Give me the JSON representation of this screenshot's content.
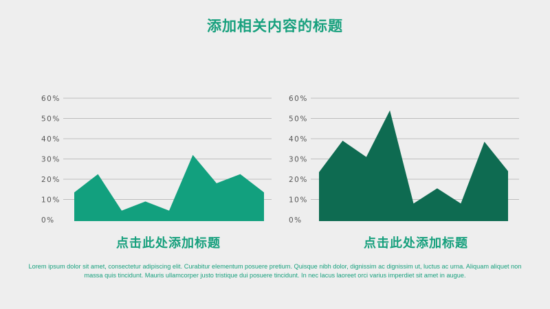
{
  "title": "添加相关内容的标题",
  "colors": {
    "title": "#17a07d",
    "left_area": "#12a07e",
    "right_area": "#0e6b51",
    "caption": "#17a07d",
    "body_text": "#17a07d"
  },
  "chart_data": [
    {
      "type": "area",
      "caption": "点击此处添加标题",
      "y_ticks": [
        "0%",
        "10%",
        "20%",
        "30%",
        "40%",
        "50%",
        "60%"
      ],
      "ylim": [
        0,
        60
      ],
      "grid": true,
      "values": [
        13.5,
        22.5,
        4.5,
        9,
        4.5,
        32,
        18,
        22.5,
        13.5
      ]
    },
    {
      "type": "area",
      "caption": "点击此处添加标题",
      "y_ticks": [
        "0%",
        "10%",
        "20%",
        "30%",
        "40%",
        "50%",
        "60%"
      ],
      "ylim": [
        0,
        60
      ],
      "grid": true,
      "values": [
        23.5,
        39,
        31,
        54,
        8,
        15.5,
        8,
        38.5,
        24
      ]
    }
  ],
  "body_text": "Lorem ipsum dolor sit amet, consectetur adipiscing elit. Curabitur elementum posuere pretium. Quisque nibh dolor, dignissim ac dignissim ut, luctus ac urna. Aliquam aliquet non massa quis tincidunt. Mauris ullamcorper justo tristique dui posuere tincidunt. In nec lacus laoreet orci varius imperdiet sit amet in augue."
}
